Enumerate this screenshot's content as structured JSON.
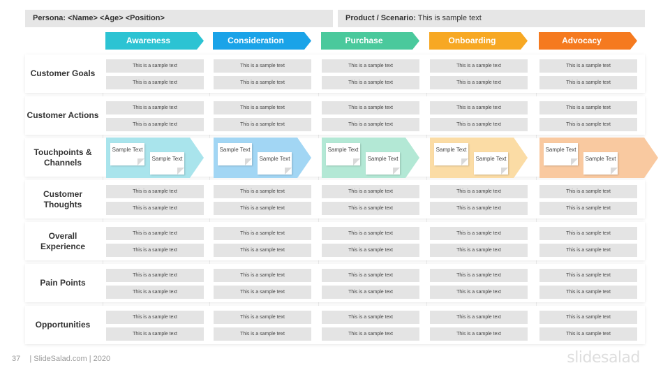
{
  "header": {
    "persona_label": "Persona:",
    "persona_value": "<Name> <Age> <Position>",
    "product_label": "Product / Scenario:",
    "product_value": "This is sample text"
  },
  "stages": [
    {
      "label": "Awareness",
      "color": "#2cc3d3",
      "light": "#a9e4ec"
    },
    {
      "label": "Consideration",
      "color": "#1aa3e8",
      "light": "#a2d6f4"
    },
    {
      "label": "Purchase",
      "color": "#4ac99c",
      "light": "#b3e8d5"
    },
    {
      "label": "Onboarding",
      "color": "#f7a823",
      "light": "#fbdca5"
    },
    {
      "label": "Advocacy",
      "color": "#f57a1f",
      "light": "#f9c9a0"
    }
  ],
  "rows": [
    {
      "label": "Customer Goals"
    },
    {
      "label": "Customer Actions"
    },
    {
      "label": "Touchpoints & Channels"
    },
    {
      "label": "Customer Thoughts"
    },
    {
      "label": "Overall Experience"
    },
    {
      "label": "Pain Points"
    },
    {
      "label": "Opportunities"
    }
  ],
  "cell_text": "This is a sample text",
  "note_text": "Sample Text",
  "footer": {
    "page_number": "37",
    "credit": "| SlideSalad.com | 2020",
    "brand": "slidesalad"
  }
}
